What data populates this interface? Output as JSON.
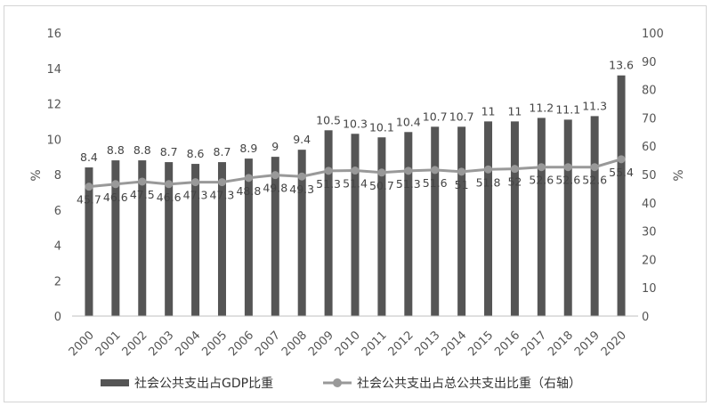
{
  "chart_data": {
    "type": "bar+line",
    "categories": [
      "2000",
      "2001",
      "2002",
      "2003",
      "2004",
      "2005",
      "2006",
      "2007",
      "2008",
      "2009",
      "2010",
      "2011",
      "2012",
      "2013",
      "2014",
      "2015",
      "2016",
      "2017",
      "2018",
      "2019",
      "2020"
    ],
    "series": [
      {
        "name": "社会公共支出占GDP比重",
        "type": "bar",
        "axis": "left",
        "color": "#555555",
        "values": [
          8.4,
          8.8,
          8.8,
          8.7,
          8.6,
          8.7,
          8.9,
          9,
          9.4,
          10.5,
          10.3,
          10.1,
          10.4,
          10.7,
          10.7,
          11,
          11,
          11.2,
          11.1,
          11.3,
          13.6
        ]
      },
      {
        "name": "社会公共支出占总公共支出比重（右轴）",
        "type": "line",
        "axis": "right",
        "color": "#999999",
        "values": [
          45.7,
          46.6,
          47.5,
          46.6,
          47.3,
          47.3,
          48.8,
          49.8,
          49.3,
          51.3,
          51.4,
          50.7,
          51.3,
          51.6,
          51,
          51.8,
          52,
          52.6,
          52.6,
          52.6,
          55.4
        ]
      }
    ],
    "left_axis": {
      "label": "%",
      "ylim": [
        0,
        16
      ],
      "ticks": [
        0,
        2,
        4,
        6,
        8,
        10,
        12,
        14,
        16
      ]
    },
    "right_axis": {
      "label": "%",
      "ylim": [
        0,
        100
      ],
      "ticks": [
        0,
        10,
        20,
        30,
        40,
        50,
        60,
        70,
        80,
        90,
        100
      ]
    },
    "grid": false,
    "legend_position": "bottom"
  }
}
